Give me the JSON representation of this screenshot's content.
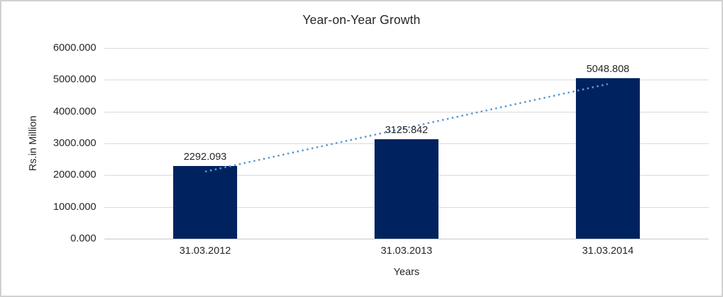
{
  "chart_data": {
    "type": "bar",
    "title": "Year-on-Year Growth",
    "xlabel": "Years",
    "ylabel": "Rs.in Million",
    "categories": [
      "31.03.2012",
      "31.03.2013",
      "31.03.2014"
    ],
    "values": [
      2292.093,
      3125.842,
      5048.808
    ],
    "data_labels": [
      "2292.093",
      "3125.842",
      "5048.808"
    ],
    "ylim": [
      0,
      6000
    ],
    "ytick_step": 1000,
    "ytick_labels": [
      "0.000",
      "1000.000",
      "2000.000",
      "3000.000",
      "4000.000",
      "5000.000",
      "6000.000"
    ],
    "grid": true,
    "legend": "none",
    "trendline": {
      "type": "linear",
      "style": "dotted",
      "span": "first-to-last-bar-center"
    },
    "colors": {
      "bar": "#002360",
      "trendline": "#5B9BD5",
      "gridline": "#D9D9D9",
      "axis_line": "#C6C6C6",
      "text": "#262626",
      "frame_border": "#D0D0D0",
      "background": "#FFFFFF"
    }
  }
}
